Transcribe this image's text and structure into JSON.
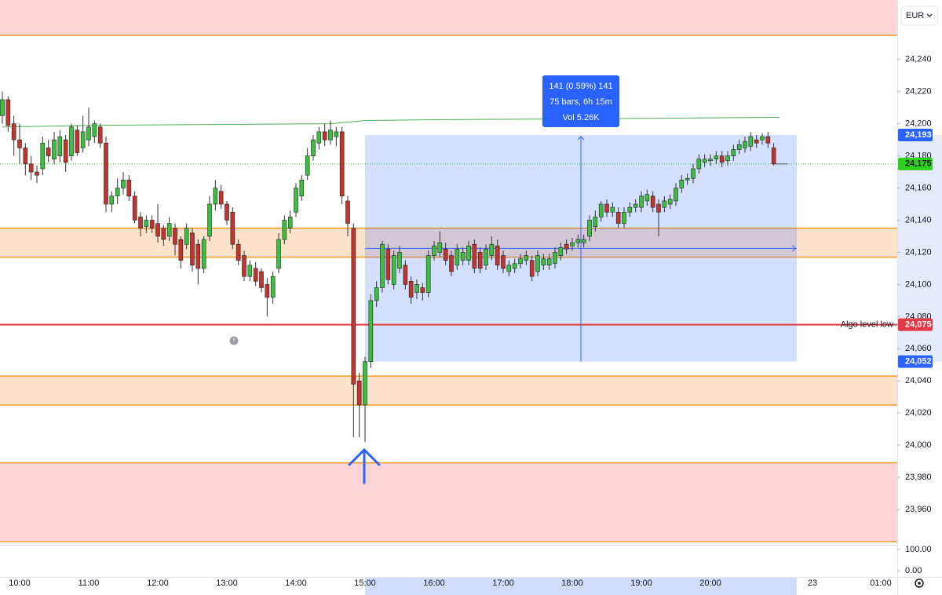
{
  "chart_data": {
    "type": "candlestick",
    "currency": "EUR",
    "x": [
      "09:45",
      "09:50",
      "09:55",
      "10:00",
      "10:05",
      "10:10",
      "10:15",
      "10:20",
      "10:25",
      "10:30",
      "10:35",
      "10:40",
      "10:45",
      "10:50",
      "10:55",
      "11:00",
      "11:05",
      "11:10",
      "11:15",
      "11:20",
      "11:25",
      "11:30",
      "11:35",
      "11:40",
      "11:45",
      "11:50",
      "11:55",
      "12:00",
      "12:05",
      "12:10",
      "12:15",
      "12:20",
      "12:25",
      "12:30",
      "12:35",
      "12:40",
      "12:45",
      "12:50",
      "12:55",
      "13:00",
      "13:05",
      "13:10",
      "13:15",
      "13:20",
      "13:25",
      "13:30",
      "13:35",
      "13:40",
      "13:45",
      "13:50",
      "13:55",
      "14:00",
      "14:05",
      "14:10",
      "14:15",
      "14:20",
      "14:25",
      "14:30",
      "14:35",
      "14:40",
      "14:45",
      "14:50",
      "14:55",
      "15:00",
      "15:05",
      "15:10",
      "15:15",
      "15:20",
      "15:25",
      "15:30",
      "15:35",
      "15:40",
      "15:45",
      "15:50",
      "15:55",
      "16:00",
      "16:05",
      "16:10",
      "16:15",
      "16:20",
      "16:25",
      "16:30",
      "16:35",
      "16:40",
      "16:45",
      "16:50",
      "16:55",
      "17:00",
      "17:05",
      "17:10",
      "17:15",
      "17:20",
      "17:25",
      "17:30",
      "17:35",
      "17:40",
      "17:45",
      "17:50",
      "17:55",
      "18:00",
      "18:05",
      "18:10",
      "18:15",
      "18:20",
      "18:25",
      "18:30",
      "18:35",
      "18:40",
      "18:45",
      "18:50",
      "18:55",
      "19:00",
      "19:05",
      "19:10",
      "19:15",
      "19:20",
      "19:25",
      "19:30",
      "19:35",
      "19:40",
      "19:45",
      "19:50",
      "19:55",
      "20:00",
      "20:05",
      "20:10",
      "20:15",
      "20:20",
      "20:25",
      "20:30",
      "20:35",
      "20:40",
      "20:45",
      "20:50",
      "20:55"
    ],
    "open": [
      24205,
      24215,
      24200,
      24190,
      24185,
      24175,
      24170,
      24172,
      24185,
      24178,
      24180,
      24190,
      24180,
      24196,
      24185,
      24190,
      24192,
      24198,
      24188,
      24150,
      24155,
      24160,
      24165,
      24155,
      24142,
      24136,
      24140,
      24138,
      24135,
      24130,
      24135,
      24128,
      24125,
      24132,
      24125,
      24110,
      24130,
      24150,
      24158,
      24150,
      24145,
      24125,
      24118,
      24105,
      24110,
      24108,
      24100,
      24092,
      24110,
      24128,
      24135,
      24145,
      24155,
      24168,
      24180,
      24188,
      24195,
      24190,
      24192,
      24195,
      24152,
      24135,
      24040,
      24025,
      24052,
      24090,
      24098,
      24122,
      24100,
      24110,
      24112,
      24102,
      24095,
      24098,
      24095,
      24118,
      24120,
      24122,
      24118,
      24112,
      24115,
      24115,
      24125,
      24120,
      24112,
      24118,
      24124,
      24118,
      24108,
      24110,
      24113,
      24115,
      24115,
      24108,
      24112,
      24112,
      24113,
      24118,
      24125,
      24124,
      24126,
      24126,
      24130,
      24136,
      24142,
      24150,
      24145,
      24145,
      24138,
      24145,
      24148,
      24148,
      24152,
      24155,
      24150,
      24148,
      24150,
      24152,
      24160,
      24165,
      24166,
      24172,
      24176,
      24177,
      24178,
      24180,
      24177,
      24180,
      24184,
      24185,
      24186,
      24190,
      24190,
      24192,
      24185
    ],
    "high": [
      24220,
      24217,
      24205,
      24200,
      24188,
      24180,
      24174,
      24192,
      24190,
      24195,
      24196,
      24193,
      24200,
      24199,
      24205,
      24210,
      24202,
      24200,
      24192,
      24158,
      24166,
      24170,
      24168,
      24158,
      24145,
      24143,
      24143,
      24150,
      24137,
      24142,
      24138,
      24130,
      24138,
      24135,
      24128,
      24130,
      24155,
      24165,
      24162,
      24152,
      24148,
      24128,
      24121,
      24115,
      24114,
      24110,
      24104,
      24108,
      24132,
      24143,
      24146,
      24163,
      24168,
      24185,
      24193,
      24198,
      24200,
      24202,
      24198,
      24198,
      24155,
      24138,
      24045,
      24055,
      24094,
      24102,
      24127,
      24125,
      24121,
      24124,
      24115,
      24105,
      24103,
      24101,
      24121,
      24127,
      24133,
      24126,
      24121,
      24125,
      24123,
      24127,
      24128,
      24123,
      24125,
      24130,
      24128,
      24121,
      24115,
      24116,
      24119,
      24121,
      24118,
      24121,
      24119,
      24119,
      24123,
      24126,
      24128,
      24129,
      24131,
      24131,
      24143,
      24146,
      24152,
      24153,
      24151,
      24148,
      24148,
      24151,
      24153,
      24158,
      24159,
      24158,
      24153,
      24155,
      24156,
      24163,
      24168,
      24169,
      24175,
      24181,
      24181,
      24181,
      24183,
      24183,
      24183,
      24187,
      24190,
      24192,
      24195,
      24193,
      24194,
      24195,
      24188
    ],
    "low": [
      24200,
      24195,
      24180,
      24175,
      24168,
      24165,
      24163,
      24168,
      24176,
      24175,
      24176,
      24170,
      24177,
      24180,
      24182,
      24186,
      24188,
      24185,
      24145,
      24145,
      24150,
      24156,
      24152,
      24138,
      24130,
      24132,
      24132,
      24126,
      24124,
      24127,
      24118,
      24110,
      24122,
      24108,
      24100,
      24107,
      24127,
      24146,
      24147,
      24137,
      24122,
      24112,
      24102,
      24102,
      24099,
      24095,
      24080,
      24088,
      24107,
      24125,
      24132,
      24142,
      24152,
      24165,
      24177,
      24184,
      24186,
      24187,
      24186,
      24150,
      24130,
      24005,
      24005,
      24002,
      24048,
      24086,
      24095,
      24100,
      24097,
      24107,
      24097,
      24088,
      24091,
      24090,
      24092,
      24115,
      24117,
      24112,
      24105,
      24109,
      24112,
      24112,
      24107,
      24107,
      24109,
      24115,
      24109,
      24107,
      24105,
      24107,
      24110,
      24112,
      24102,
      24105,
      24109,
      24109,
      24110,
      24115,
      24119,
      24121,
      24123,
      24123,
      24127,
      24133,
      24139,
      24142,
      24142,
      24135,
      24135,
      24142,
      24145,
      24145,
      24149,
      24145,
      24130,
      24145,
      24147,
      24149,
      24157,
      24162,
      24163,
      24169,
      24173,
      24174,
      24175,
      24173,
      24174,
      24177,
      24181,
      24182,
      24183,
      24185,
      24187,
      24185,
      24174
    ],
    "close": [
      24215,
      24199,
      24190,
      24185,
      24175,
      24170,
      24168,
      24188,
      24180,
      24190,
      24192,
      24176,
      24198,
      24182,
      24195,
      24198,
      24200,
      24188,
      24150,
      24155,
      24160,
      24165,
      24155,
      24140,
      24135,
      24140,
      24135,
      24130,
      24128,
      24138,
      24125,
      24115,
      24135,
      24112,
      24110,
      24128,
      24150,
      24160,
      24150,
      24140,
      24125,
      24115,
      24105,
      24112,
      24102,
      24098,
      24092,
      24105,
      24128,
      24140,
      24142,
      24160,
      24165,
      24180,
      24190,
      24195,
      24190,
      24196,
      24195,
      24155,
      24138,
      24038,
      24025,
      24052,
      24090,
      24098,
      24125,
      24103,
      24118,
      24120,
      24100,
      24092,
      24100,
      24095,
      24118,
      24124,
      24126,
      24115,
      24108,
      24122,
      24120,
      24124,
      24110,
      24110,
      24122,
      24125,
      24112,
      24110,
      24112,
      24113,
      24116,
      24118,
      24105,
      24118,
      24116,
      24116,
      24120,
      24123,
      24122,
      24126,
      24128,
      24128,
      24140,
      24142,
      24150,
      24145,
      24148,
      24138,
      24145,
      24148,
      24150,
      24155,
      24156,
      24148,
      24145,
      24152,
      24153,
      24160,
      24165,
      24166,
      24172,
      24178,
      24178,
      24178,
      24180,
      24176,
      24180,
      24184,
      24187,
      24189,
      24192,
      24188,
      24192,
      24188,
      24175
    ],
    "up_color": "#3cbf3f",
    "down_color": "#c2342e",
    "ylim": [
      23940,
      24277
    ],
    "yticks": [
      {
        "value": 23960,
        "label": "23,960"
      },
      {
        "value": 23980,
        "label": "23,980"
      },
      {
        "value": 24000,
        "label": "24,000"
      },
      {
        "value": 24020,
        "label": "24,020"
      },
      {
        "value": 24040,
        "label": "24,040"
      },
      {
        "value": 24060,
        "label": "24,060"
      },
      {
        "value": 24080,
        "label": "24,080"
      },
      {
        "value": 24100,
        "label": "24,100"
      },
      {
        "value": 24120,
        "label": "24,120"
      },
      {
        "value": 24140,
        "label": "24,140"
      },
      {
        "value": 24160,
        "label": "24,160"
      },
      {
        "value": 24180,
        "label": "24,180"
      },
      {
        "value": 24200,
        "label": "24,200"
      },
      {
        "value": 24220,
        "label": "24,220"
      },
      {
        "value": 24240,
        "label": "24,240"
      }
    ],
    "volume_ylim": [
      0,
      100
    ],
    "volume_ticks": [
      {
        "value": 100,
        "label": "100.00"
      },
      {
        "value": 0,
        "label": "0.00"
      }
    ],
    "xticks": [
      "10:00",
      "11:00",
      "12:00",
      "13:00",
      "14:00",
      "15:00",
      "16:00",
      "17:00",
      "18:00",
      "19:00",
      "20:00",
      "23",
      "01:00"
    ],
    "vwap": {
      "color": "#4caf50",
      "x": [
        "09:45",
        "11:00",
        "14:30",
        "15:00",
        "16:00",
        "18:00",
        "21:00"
      ],
      "values": [
        24198,
        24199,
        24200,
        24202,
        24202.5,
        24203,
        24204
      ]
    },
    "zones": [
      {
        "low": 24255,
        "high": 24277,
        "color": "#fcd5d8"
      },
      {
        "low": 24117,
        "high": 24135,
        "color": "#fde2cb"
      },
      {
        "low": 24025,
        "high": 24043,
        "color": "#fde2cb"
      },
      {
        "low": 23940,
        "high": 23989,
        "color": "#fcd5d8"
      }
    ],
    "levels": {
      "color": "#f59a23",
      "values": [
        24255,
        24135,
        24117,
        24043,
        24025,
        23989,
        23940
      ]
    },
    "algo_level": {
      "value": 24075,
      "label": "24,075",
      "text": "Algo level low",
      "color": "#e53946"
    },
    "last_price": {
      "value": 24175,
      "label": "24,175",
      "color": "#2fd11f"
    },
    "measure": {
      "from": "15:00",
      "to": "21:15",
      "color": "#2962ff",
      "low": {
        "value": 24052,
        "label": "24,052"
      },
      "high": {
        "value": 24193,
        "label": "24,193"
      },
      "lines": [
        "141 (0.59%) 141",
        "75 bars, 6h 15m",
        "Vol 5.26K"
      ]
    }
  }
}
